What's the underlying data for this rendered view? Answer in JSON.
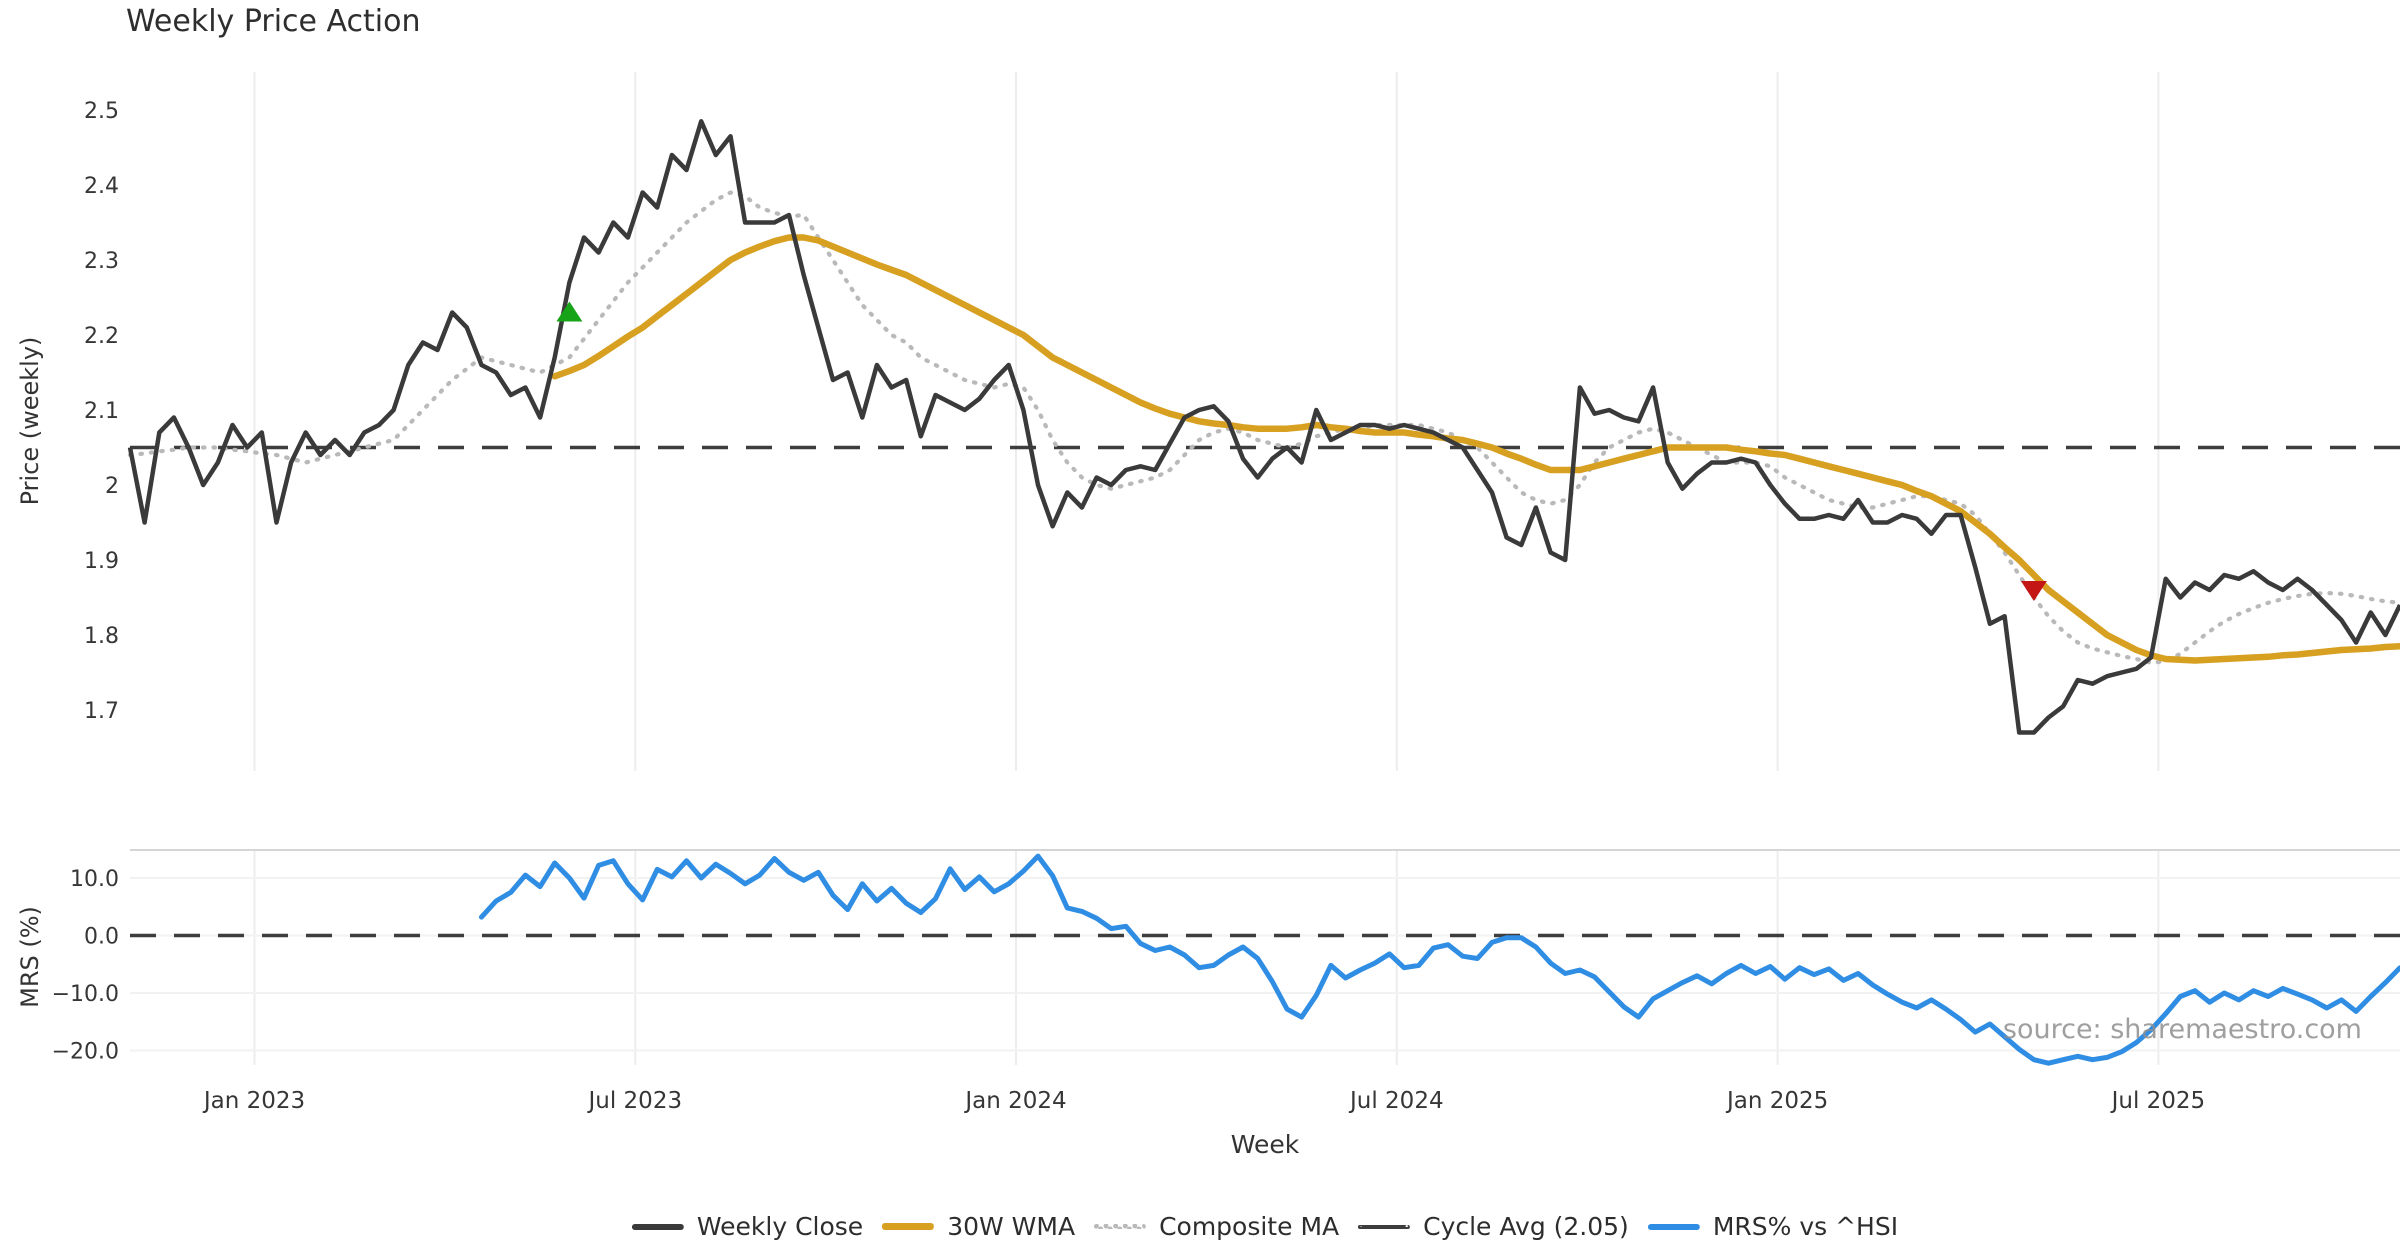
{
  "title": "Weekly Price Action",
  "watermark": "source: sharemaestro.com",
  "legend": {
    "items": [
      {
        "label": "Weekly Close",
        "swatch": "solid-dark-line"
      },
      {
        "label": "30W WMA",
        "swatch": "solid-gold-line"
      },
      {
        "label": "Composite MA",
        "swatch": "dotted-gray-line"
      },
      {
        "label": "Cycle Avg (2.05)",
        "swatch": "dashed-dark-line"
      },
      {
        "label": "MRS% vs ^HSI",
        "swatch": "solid-blue-line"
      }
    ]
  },
  "chart_data": {
    "type": "line",
    "title": "Weekly Price Action",
    "xlabel": "Week",
    "x": {
      "n": 156,
      "tick_indices": [
        8.5,
        34.5,
        60.5,
        86.5,
        112.5,
        138.5
      ],
      "tick_labels": [
        "Jan 2023",
        "Jul 2023",
        "Jan 2024",
        "Jul 2024",
        "Jan 2025",
        "Jul 2025"
      ]
    },
    "panels": [
      {
        "name": "price",
        "ylabel": "Price (weekly)",
        "ylim": [
          1.619,
          2.551
        ],
        "yticks": [
          {
            "v": 2.5,
            "label": "2.5"
          },
          {
            "v": 2.4,
            "label": "2.4"
          },
          {
            "v": 2.3,
            "label": "2.3"
          },
          {
            "v": 2.2,
            "label": "2.2"
          },
          {
            "v": 2.1,
            "label": "2.1"
          },
          {
            "v": 2.0,
            "label": "2"
          },
          {
            "v": 1.9,
            "label": "1.9"
          },
          {
            "v": 1.8,
            "label": "1.8"
          },
          {
            "v": 1.7,
            "label": "1.7"
          }
        ],
        "cycle_avg": 2.05
      },
      {
        "name": "mrs",
        "ylabel": "MRS (%)",
        "ylim": [
          -22.5,
          14.9
        ],
        "yticks": [
          {
            "v": 10,
            "label": "10.0"
          },
          {
            "v": 0,
            "label": "0.0"
          },
          {
            "v": -10,
            "label": "−10.0"
          },
          {
            "v": -20,
            "label": "−20.0"
          }
        ],
        "zero_line": 0
      }
    ],
    "series": {
      "weekly_close": {
        "start": 0,
        "values": [
          2.05,
          1.95,
          2.07,
          2.09,
          2.05,
          2.0,
          2.03,
          2.08,
          2.05,
          2.07,
          1.95,
          2.03,
          2.07,
          2.04,
          2.06,
          2.04,
          2.07,
          2.08,
          2.1,
          2.16,
          2.19,
          2.18,
          2.23,
          2.21,
          2.16,
          2.15,
          2.12,
          2.13,
          2.09,
          2.17,
          2.27,
          2.33,
          2.31,
          2.35,
          2.33,
          2.39,
          2.37,
          2.44,
          2.42,
          2.485,
          2.44,
          2.465,
          2.35,
          2.35,
          2.35,
          2.36,
          2.28,
          2.21,
          2.14,
          2.15,
          2.09,
          2.16,
          2.13,
          2.14,
          2.065,
          2.12,
          2.11,
          2.1,
          2.115,
          2.14,
          2.16,
          2.1,
          2.0,
          1.945,
          1.99,
          1.97,
          2.01,
          2.0,
          2.02,
          2.025,
          2.02,
          2.055,
          2.09,
          2.1,
          2.105,
          2.085,
          2.035,
          2.01,
          2.035,
          2.05,
          2.03,
          2.1,
          2.06,
          2.07,
          2.08,
          2.08,
          2.075,
          2.08,
          2.075,
          2.07,
          2.06,
          2.05,
          2.02,
          1.99,
          1.93,
          1.92,
          1.97,
          1.91,
          1.9,
          2.13,
          2.095,
          2.1,
          2.09,
          2.085,
          2.13,
          2.03,
          1.995,
          2.015,
          2.03,
          2.03,
          2.035,
          2.03,
          2.0,
          1.975,
          1.955,
          1.955,
          1.96,
          1.955,
          1.98,
          1.95,
          1.95,
          1.96,
          1.955,
          1.935,
          1.96,
          1.96,
          1.89,
          1.815,
          1.825,
          1.67,
          1.67,
          1.69,
          1.705,
          1.74,
          1.735,
          1.745,
          1.75,
          1.755,
          1.77,
          1.875,
          1.85,
          1.87,
          1.86,
          1.88,
          1.875,
          1.885,
          1.87,
          1.86,
          1.875,
          1.86,
          1.84,
          1.82,
          1.79,
          1.83,
          1.8,
          1.84
        ]
      },
      "wma30": {
        "start": 29,
        "values": [
          2.145,
          2.152,
          2.16,
          2.172,
          2.185,
          2.198,
          2.21,
          2.225,
          2.24,
          2.255,
          2.27,
          2.285,
          2.3,
          2.31,
          2.318,
          2.325,
          2.33,
          2.33,
          2.326,
          2.318,
          2.31,
          2.302,
          2.294,
          2.287,
          2.28,
          2.27,
          2.26,
          2.25,
          2.24,
          2.23,
          2.22,
          2.21,
          2.2,
          2.185,
          2.17,
          2.16,
          2.15,
          2.14,
          2.13,
          2.12,
          2.11,
          2.102,
          2.095,
          2.09,
          2.085,
          2.082,
          2.08,
          2.077,
          2.075,
          2.075,
          2.075,
          2.077,
          2.08,
          2.077,
          2.075,
          2.072,
          2.07,
          2.07,
          2.07,
          2.067,
          2.065,
          2.062,
          2.06,
          2.055,
          2.05,
          2.042,
          2.035,
          2.027,
          2.02,
          2.02,
          2.02,
          2.025,
          2.03,
          2.035,
          2.04,
          2.045,
          2.05,
          2.05,
          2.05,
          2.05,
          2.05,
          2.047,
          2.045,
          2.042,
          2.04,
          2.035,
          2.03,
          2.025,
          2.02,
          2.015,
          2.01,
          2.005,
          2.0,
          1.992,
          1.985,
          1.975,
          1.965,
          1.95,
          1.935,
          1.917,
          1.9,
          1.88,
          1.86,
          1.845,
          1.83,
          1.815,
          1.8,
          1.79,
          1.78,
          1.773,
          1.768,
          1.767,
          1.766,
          1.767,
          1.768,
          1.769,
          1.77,
          1.771,
          1.773,
          1.774,
          1.776,
          1.778,
          1.78,
          1.781,
          1.782,
          1.784,
          1.785
        ]
      },
      "composite": {
        "start": 0,
        "values": [
          2.04,
          2.042,
          2.045,
          2.047,
          2.05,
          2.05,
          2.05,
          2.047,
          2.045,
          2.042,
          2.04,
          2.035,
          2.03,
          2.035,
          2.04,
          2.045,
          2.05,
          2.055,
          2.06,
          2.08,
          2.1,
          2.12,
          2.14,
          2.155,
          2.17,
          2.165,
          2.16,
          2.155,
          2.15,
          2.16,
          2.17,
          2.195,
          2.22,
          2.245,
          2.27,
          2.29,
          2.31,
          2.33,
          2.35,
          2.365,
          2.38,
          2.39,
          2.385,
          2.37,
          2.363,
          2.358,
          2.36,
          2.33,
          2.3,
          2.27,
          2.24,
          2.22,
          2.2,
          2.19,
          2.17,
          2.16,
          2.15,
          2.14,
          2.135,
          2.13,
          2.135,
          2.13,
          2.1,
          2.06,
          2.03,
          2.01,
          2.0,
          1.995,
          2.0,
          2.005,
          2.01,
          2.02,
          2.04,
          2.06,
          2.07,
          2.075,
          2.07,
          2.06,
          2.055,
          2.05,
          2.055,
          2.065,
          2.07,
          2.075,
          2.075,
          2.08,
          2.08,
          2.08,
          2.08,
          2.075,
          2.07,
          2.06,
          2.05,
          2.03,
          2.01,
          1.99,
          1.98,
          1.975,
          1.98,
          2.0,
          2.03,
          2.05,
          2.06,
          2.07,
          2.075,
          2.07,
          2.06,
          2.05,
          2.04,
          2.03,
          2.03,
          2.03,
          2.025,
          2.01,
          2.0,
          1.99,
          1.98,
          1.975,
          1.97,
          1.97,
          1.975,
          1.98,
          1.985,
          1.985,
          1.98,
          1.975,
          1.96,
          1.935,
          1.91,
          1.88,
          1.85,
          1.825,
          1.805,
          1.79,
          1.782,
          1.777,
          1.772,
          1.768,
          1.763,
          1.765,
          1.775,
          1.79,
          1.805,
          1.818,
          1.828,
          1.836,
          1.843,
          1.848,
          1.852,
          1.855,
          1.856,
          1.855,
          1.852,
          1.848,
          1.845,
          1.843
        ]
      },
      "mrs": {
        "start": 24,
        "values": [
          3.2,
          6.0,
          7.5,
          10.5,
          8.5,
          12.6,
          10.0,
          6.5,
          12.2,
          13.0,
          9.0,
          6.2,
          11.5,
          10.2,
          13.0,
          10.0,
          12.4,
          10.8,
          9.0,
          10.5,
          13.4,
          11.0,
          9.6,
          11.0,
          7.0,
          4.5,
          9.0,
          6.0,
          8.2,
          5.6,
          4.0,
          6.4,
          11.6,
          8.0,
          10.2,
          7.6,
          9.0,
          11.2,
          13.8,
          10.4,
          4.8,
          4.2,
          3.0,
          1.2,
          1.6,
          -1.4,
          -2.6,
          -2.0,
          -3.4,
          -5.6,
          -5.2,
          -3.4,
          -2.0,
          -4.0,
          -8.0,
          -12.8,
          -14.2,
          -10.4,
          -5.2,
          -7.4,
          -6.0,
          -4.8,
          -3.2,
          -5.6,
          -5.2,
          -2.2,
          -1.6,
          -3.6,
          -4.0,
          -1.2,
          -0.4,
          -0.4,
          -2.0,
          -4.8,
          -6.6,
          -6.0,
          -7.2,
          -9.8,
          -12.4,
          -14.2,
          -11.0,
          -9.6,
          -8.2,
          -7.0,
          -8.4,
          -6.6,
          -5.2,
          -6.6,
          -5.4,
          -7.6,
          -5.6,
          -6.8,
          -5.8,
          -7.8,
          -6.6,
          -8.6,
          -10.2,
          -11.6,
          -12.6,
          -11.2,
          -12.8,
          -14.6,
          -16.8,
          -15.4,
          -17.6,
          -19.8,
          -21.6,
          -22.2,
          -21.6,
          -21.0,
          -21.6,
          -21.2,
          -20.2,
          -18.6,
          -16.4,
          -13.6,
          -10.6,
          -9.6,
          -11.6,
          -10.0,
          -11.2,
          -9.6,
          -10.6,
          -9.2,
          -10.2,
          -11.2,
          -12.6,
          -11.2,
          -13.2,
          -10.6,
          -8.2,
          -5.6
        ]
      }
    },
    "markers": [
      {
        "name": "buy-marker",
        "shape": "triangle-up",
        "index": 30,
        "value": 2.23,
        "color": "#17a317"
      },
      {
        "name": "sell-marker",
        "shape": "triangle-down",
        "index": 130,
        "value": 1.86,
        "color": "#c51616"
      }
    ],
    "colors": {
      "weekly_close": "#3a3a3a",
      "wma30": "#d7a021",
      "composite": "#b9b9b9",
      "cycle_avg": "#3d3d3d",
      "mrs": "#2f8de4",
      "grid_vertical": "#ededed",
      "grid_horizontal": "#f2f2f2",
      "panel_spine": "#d5d5d5",
      "tick_text": "#363636"
    }
  }
}
